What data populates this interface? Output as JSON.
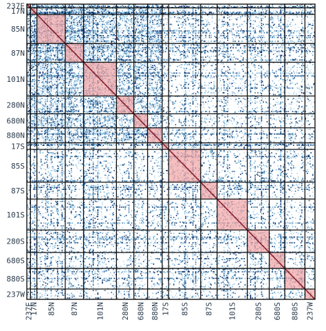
{
  "chart_data": {
    "type": "heatmap",
    "title": "",
    "xlabel": "",
    "ylabel": "",
    "grid": true,
    "legend": "none",
    "groups": [
      "237E",
      "17N",
      "85N",
      "87N",
      "101N",
      "280N",
      "680N",
      "880N",
      "17S",
      "85S",
      "87S",
      "101S",
      "280S",
      "680S",
      "880S",
      "237W"
    ],
    "group_sizes": [
      4,
      7,
      31,
      20,
      36,
      19,
      15,
      16,
      7,
      35,
      18,
      33,
      24,
      17,
      22,
      11
    ],
    "density_scale": [
      0,
      1
    ],
    "colors": {
      "background": "#ffffff",
      "cell_low": "#dbe9f6",
      "cell_mid": "#6baed6",
      "cell_high": "#08306b",
      "diagonal_block": "#f4a6a6",
      "diagonal_line": "#7a1020",
      "grid_line": "#111111"
    }
  }
}
